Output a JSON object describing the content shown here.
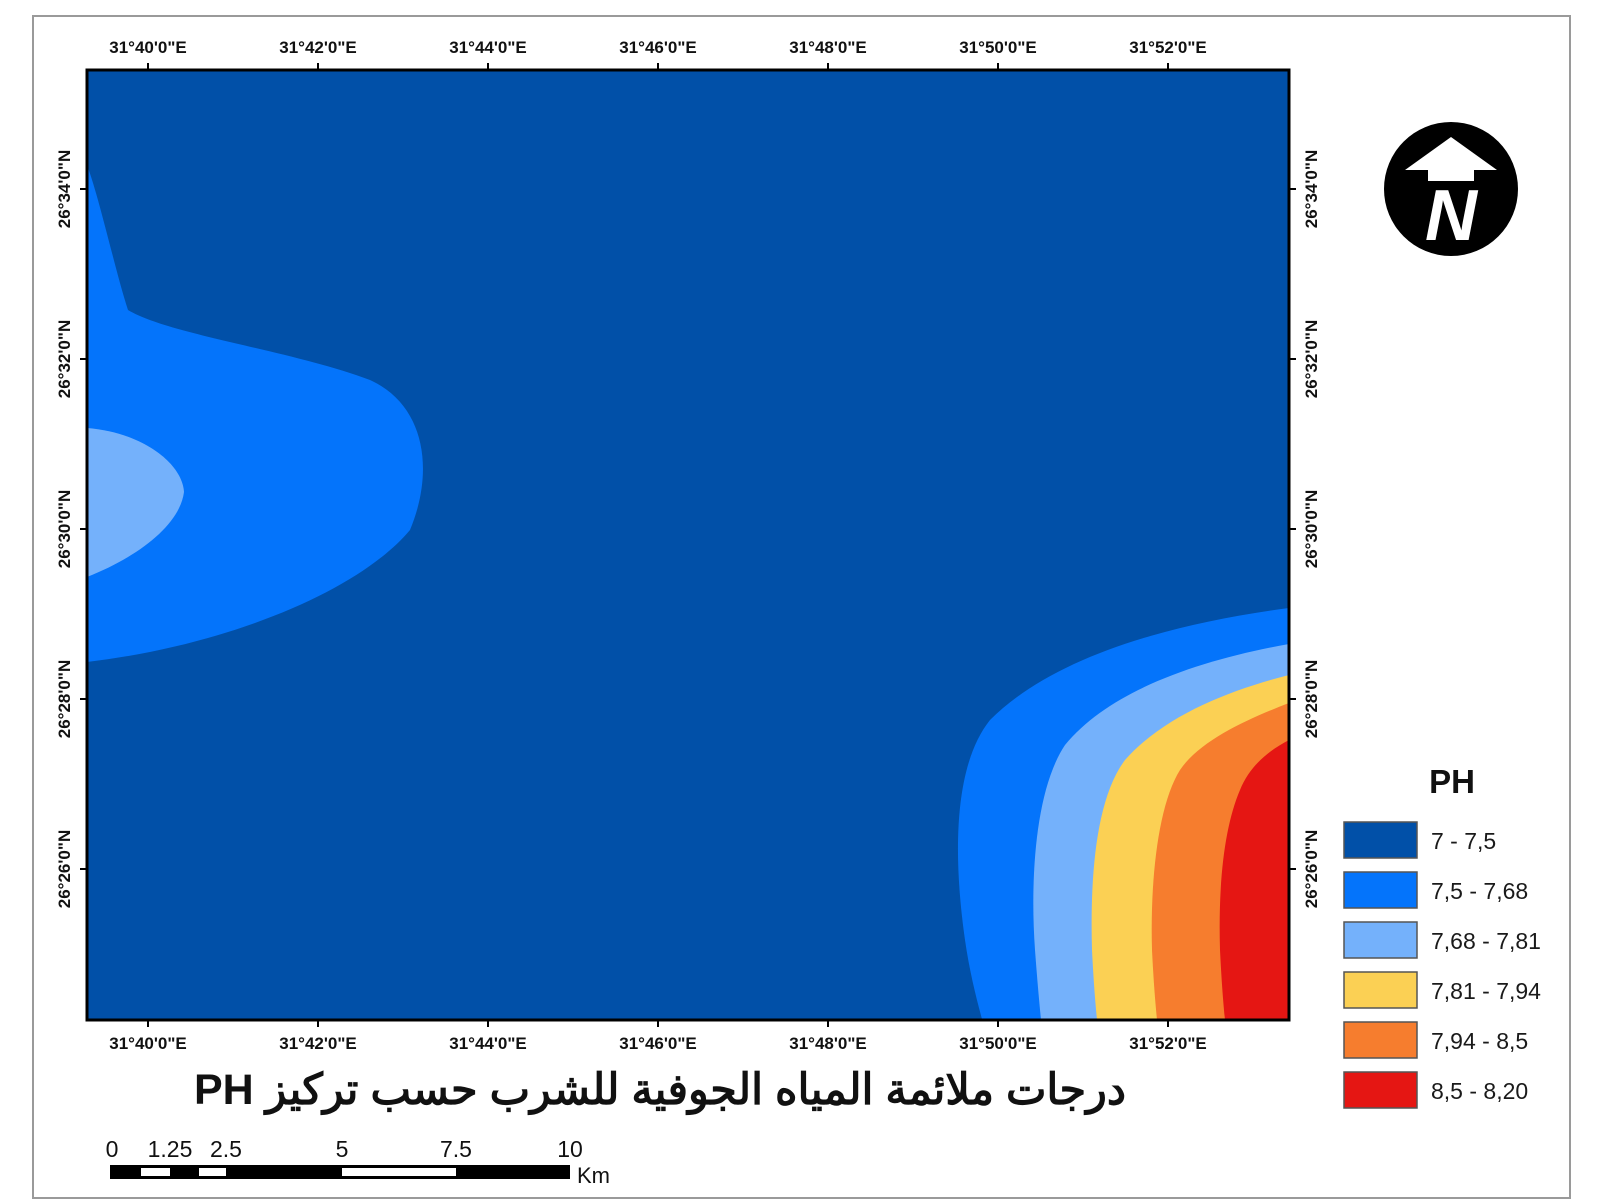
{
  "map": {
    "title": "درجات ملائمة المياه الجوفية للشرب حسب تركيز PH",
    "top_ticks": [
      "31°40'0\"E",
      "31°42'0\"E",
      "31°44'0\"E",
      "31°46'0\"E",
      "31°48'0\"E",
      "31°50'0\"E",
      "31°52'0\"E"
    ],
    "bottom_ticks": [
      "31°40'0\"E",
      "31°42'0\"E",
      "31°44'0\"E",
      "31°46'0\"E",
      "31°48'0\"E",
      "31°50'0\"E",
      "31°52'0\"E"
    ],
    "left_ticks": [
      "26°34'0\"N",
      "26°32'0\"N",
      "26°30'0\"N",
      "26°28'0\"N",
      "26°26'0\"N"
    ],
    "right_ticks": [
      "26°34'0\"N",
      "26°32'0\"N",
      "26°30'0\"N",
      "26°28'0\"N",
      "26°26'0\"N"
    ]
  },
  "north_arrow": {
    "letter": "N"
  },
  "legend": {
    "title": "PH",
    "classes": [
      {
        "label": "7 - 7,5",
        "color": "#0150a8"
      },
      {
        "label": "7,5 - 7,68",
        "color": "#0474fb"
      },
      {
        "label": "7,68 - 7,81",
        "color": "#74b1fb"
      },
      {
        "label": "7,81 - 7,94",
        "color": "#fbd054"
      },
      {
        "label": "7,94 - 8,5",
        "color": "#f67d2e"
      },
      {
        "label": "8,5 - 8,20",
        "color": "#e51613"
      }
    ]
  },
  "scale_bar": {
    "labels": [
      "0",
      "1.25",
      "2.5",
      "5",
      "7.5",
      "10"
    ],
    "unit": "Km"
  }
}
